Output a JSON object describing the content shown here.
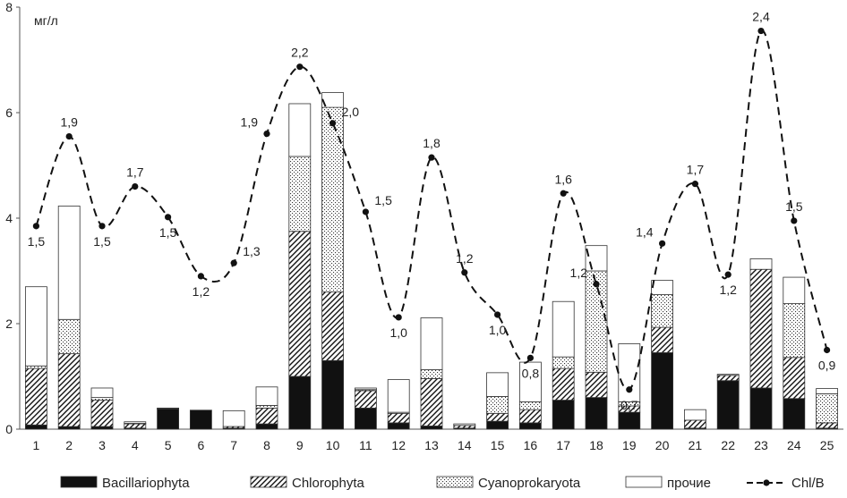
{
  "chart_data": {
    "type": "bar",
    "subtype": "stacked-bar-with-line",
    "ylabel": "мг/л",
    "ylim": [
      0,
      8
    ],
    "yticks": [
      "0",
      "2",
      "4",
      "6",
      "8"
    ],
    "categories": [
      "1",
      "2",
      "3",
      "4",
      "5",
      "6",
      "7",
      "8",
      "9",
      "10",
      "11",
      "12",
      "13",
      "14",
      "15",
      "16",
      "17",
      "18",
      "19",
      "20",
      "21",
      "22",
      "23",
      "24",
      "25"
    ],
    "series": [
      {
        "name": "Bacillariophyta",
        "pattern": "solid",
        "values": [
          0.08,
          0.05,
          0.05,
          0.02,
          0.38,
          0.36,
          0.02,
          0.1,
          1.0,
          1.3,
          0.4,
          0.12,
          0.06,
          0.02,
          0.15,
          0.12,
          0.55,
          0.6,
          0.32,
          1.45,
          0.02,
          0.92,
          0.78,
          0.58,
          0.02
        ]
      },
      {
        "name": "Chlorophyta",
        "pattern": "hatch",
        "values": [
          1.07,
          1.38,
          0.5,
          0.08,
          0.01,
          0.0,
          0.03,
          0.3,
          2.75,
          1.3,
          0.33,
          0.18,
          0.9,
          0.05,
          0.15,
          0.25,
          0.6,
          0.48,
          0.12,
          0.48,
          0.15,
          0.1,
          2.25,
          0.78,
          0.1
        ]
      },
      {
        "name": "Cyanoprokaryota",
        "pattern": "dots",
        "values": [
          0.05,
          0.65,
          0.05,
          0.01,
          0.01,
          0.0,
          0.0,
          0.05,
          1.42,
          3.5,
          0.02,
          0.02,
          0.17,
          0.0,
          0.32,
          0.15,
          0.22,
          1.92,
          0.08,
          0.62,
          0.0,
          0.02,
          0.0,
          1.02,
          0.55
        ]
      },
      {
        "name": "прочие",
        "pattern": "empty",
        "values": [
          1.5,
          2.15,
          0.18,
          0.03,
          0.0,
          0.0,
          0.3,
          0.35,
          1.0,
          0.28,
          0.03,
          0.62,
          0.98,
          0.03,
          0.45,
          0.75,
          1.05,
          0.48,
          1.1,
          0.27,
          0.2,
          0.0,
          0.2,
          0.5,
          0.1
        ]
      }
    ],
    "line": {
      "name": "Chl/B",
      "style": "dashed",
      "y": [
        3.85,
        5.55,
        3.85,
        4.6,
        4.02,
        2.9,
        3.15,
        5.6,
        6.87,
        5.8,
        4.12,
        2.12,
        5.15,
        2.97,
        2.17,
        1.35,
        4.47,
        2.75,
        0.75,
        3.52,
        4.65,
        2.93,
        7.55,
        3.95,
        1.5
      ],
      "labels": [
        "1,5",
        "1,9",
        "1,5",
        "1,7",
        "1,5",
        "1,2",
        "1,3",
        "1,9",
        "2,2",
        "2,0",
        "1,5",
        "1,0",
        "1,8",
        "1,2",
        "1,0",
        "0,8",
        "1,6",
        "1,2",
        "0,7",
        "1,4",
        "1,7",
        "1,2",
        "2,4",
        "1,5",
        "0,9"
      ],
      "label_side": [
        "below",
        "above",
        "below",
        "above",
        "below",
        "below",
        "right",
        "left",
        "above",
        "right",
        "right",
        "below",
        "above",
        "above",
        "below",
        "below",
        "above",
        "left",
        "below",
        "left",
        "above",
        "below",
        "above",
        "above",
        "below"
      ]
    },
    "legend_placement": "bottom",
    "grid": false,
    "colors": {
      "bar_fill": "#111111",
      "line": "#111111",
      "axis": "#555555"
    }
  }
}
